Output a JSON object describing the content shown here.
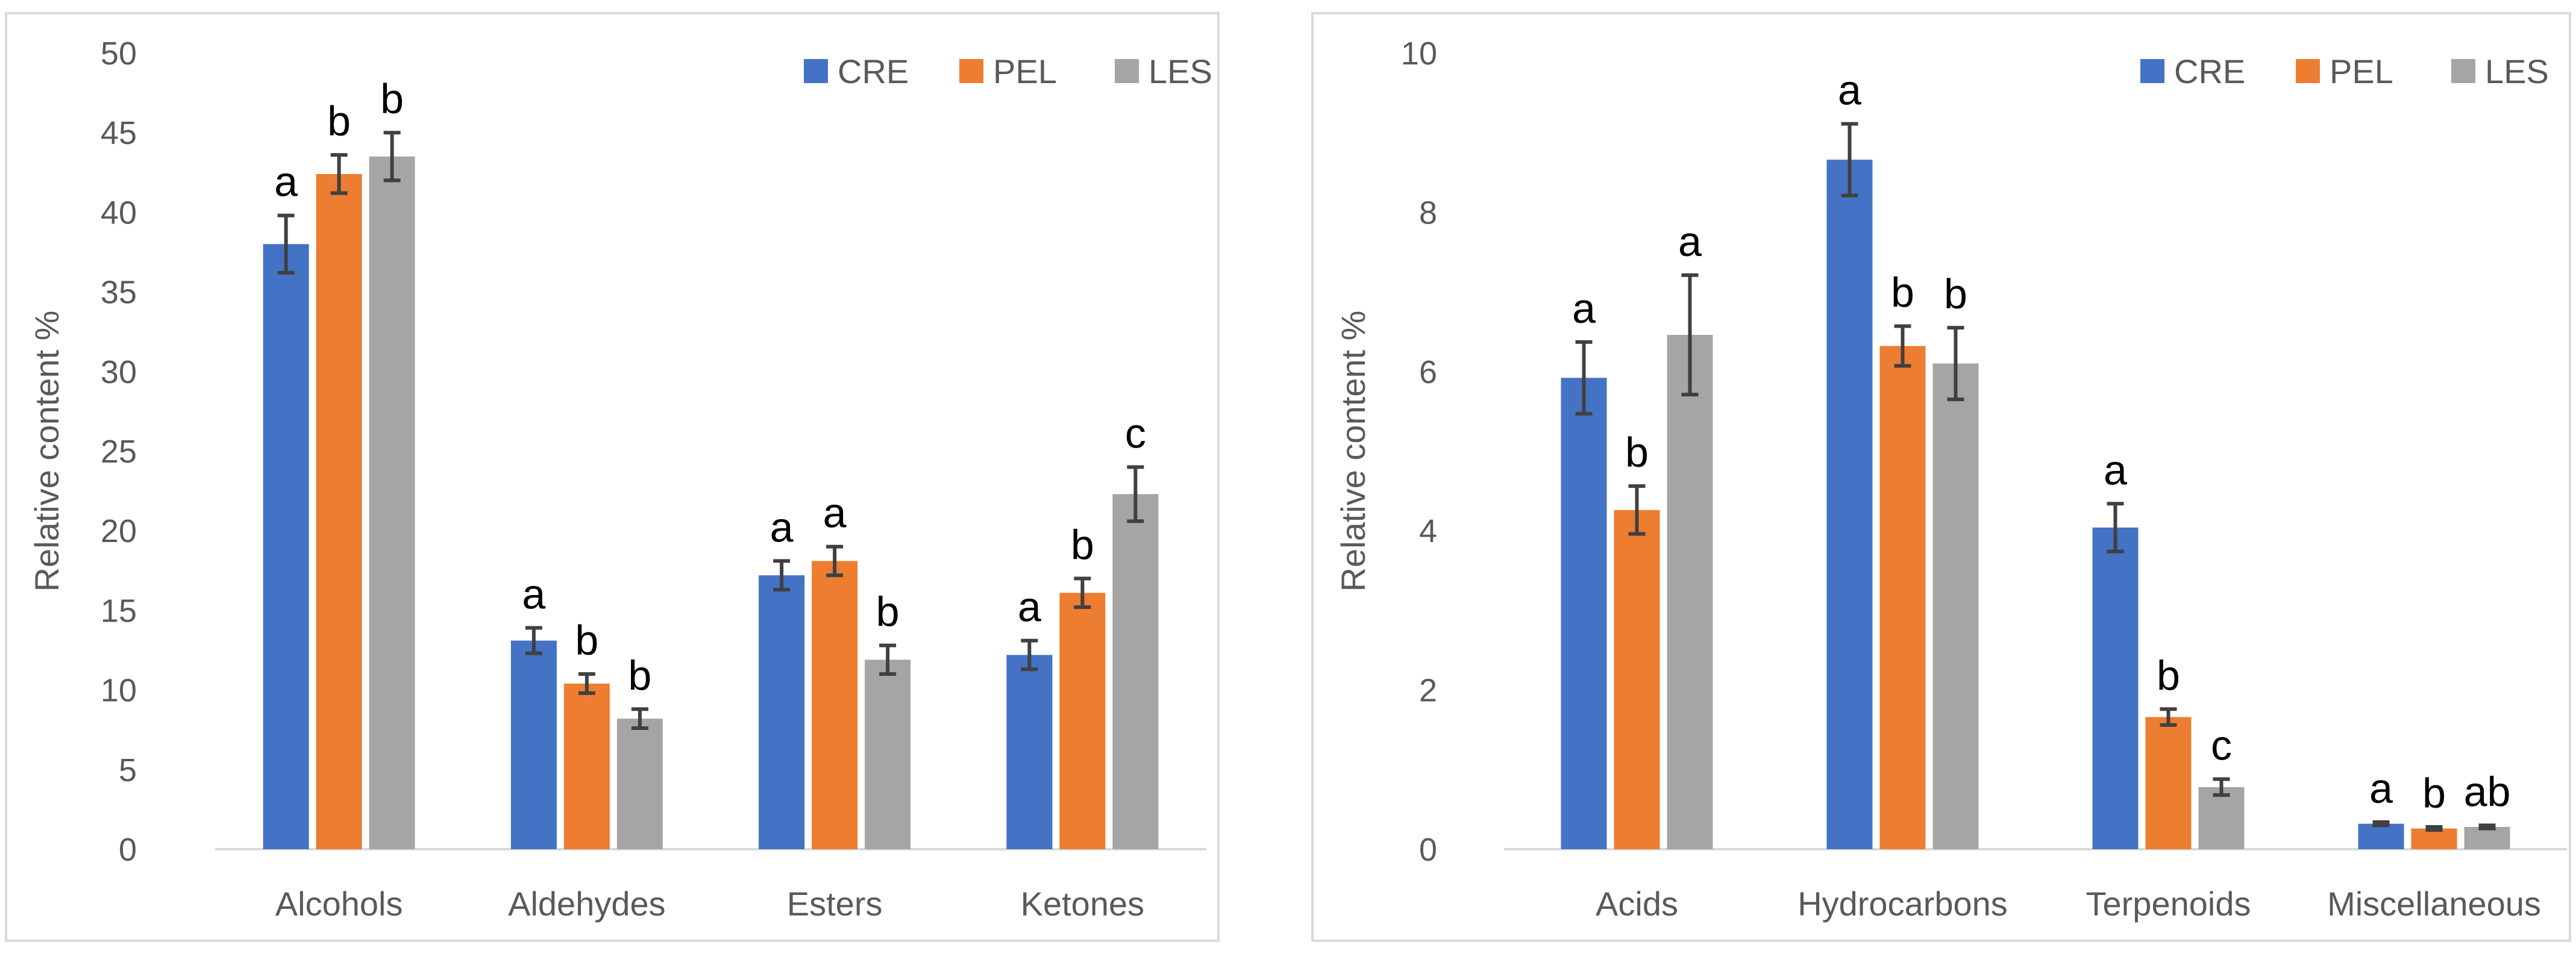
{
  "chart_data": [
    {
      "type": "bar",
      "ylabel": "Relative content %",
      "ylim": [
        0,
        50
      ],
      "yticks": [
        0,
        5,
        10,
        15,
        20,
        25,
        30,
        35,
        40,
        45,
        50
      ],
      "categories": [
        "Alcohols",
        "Aldehydes",
        "Esters",
        "Ketones"
      ],
      "series": [
        {
          "name": "CRE",
          "color": "#4472c4",
          "values": [
            38.0,
            13.1,
            17.2,
            12.2
          ],
          "errors": [
            1.8,
            0.8,
            0.9,
            0.9
          ],
          "letters": [
            "a",
            "a",
            "a",
            "a"
          ]
        },
        {
          "name": "PEL",
          "color": "#ed7d31",
          "values": [
            42.4,
            10.4,
            18.1,
            16.1
          ],
          "errors": [
            1.2,
            0.6,
            0.9,
            0.9
          ],
          "letters": [
            "b",
            "b",
            "a",
            "b"
          ]
        },
        {
          "name": "LES",
          "color": "#a5a5a5",
          "values": [
            43.5,
            8.2,
            11.9,
            22.3
          ],
          "errors": [
            1.5,
            0.6,
            0.9,
            1.7
          ],
          "letters": [
            "b",
            "b",
            "b",
            "c"
          ]
        }
      ],
      "legend": "top-right",
      "grid": false
    },
    {
      "type": "bar",
      "ylabel": "Relative content %",
      "ylim": [
        0,
        10
      ],
      "yticks": [
        0,
        2,
        4,
        6,
        8,
        10
      ],
      "categories": [
        "Acids",
        "Hydrocarbons",
        "Terpenoids",
        "Miscellaneous"
      ],
      "series": [
        {
          "name": "CRE",
          "color": "#4472c4",
          "values": [
            5.92,
            8.66,
            4.04,
            0.32
          ],
          "errors": [
            0.45,
            0.45,
            0.3,
            0.02
          ],
          "letters": [
            "a",
            "a",
            "a",
            "a"
          ]
        },
        {
          "name": "PEL",
          "color": "#ed7d31",
          "values": [
            4.26,
            6.32,
            1.66,
            0.26
          ],
          "errors": [
            0.3,
            0.25,
            0.1,
            0.02
          ],
          "letters": [
            "b",
            "b",
            "b",
            "b"
          ]
        },
        {
          "name": "LES",
          "color": "#a5a5a5",
          "values": [
            6.46,
            6.1,
            0.78,
            0.28
          ],
          "errors": [
            0.75,
            0.45,
            0.1,
            0.02
          ],
          "letters": [
            "a",
            "b",
            "c",
            "ab"
          ]
        }
      ],
      "legend": "top-right",
      "grid": false
    }
  ]
}
